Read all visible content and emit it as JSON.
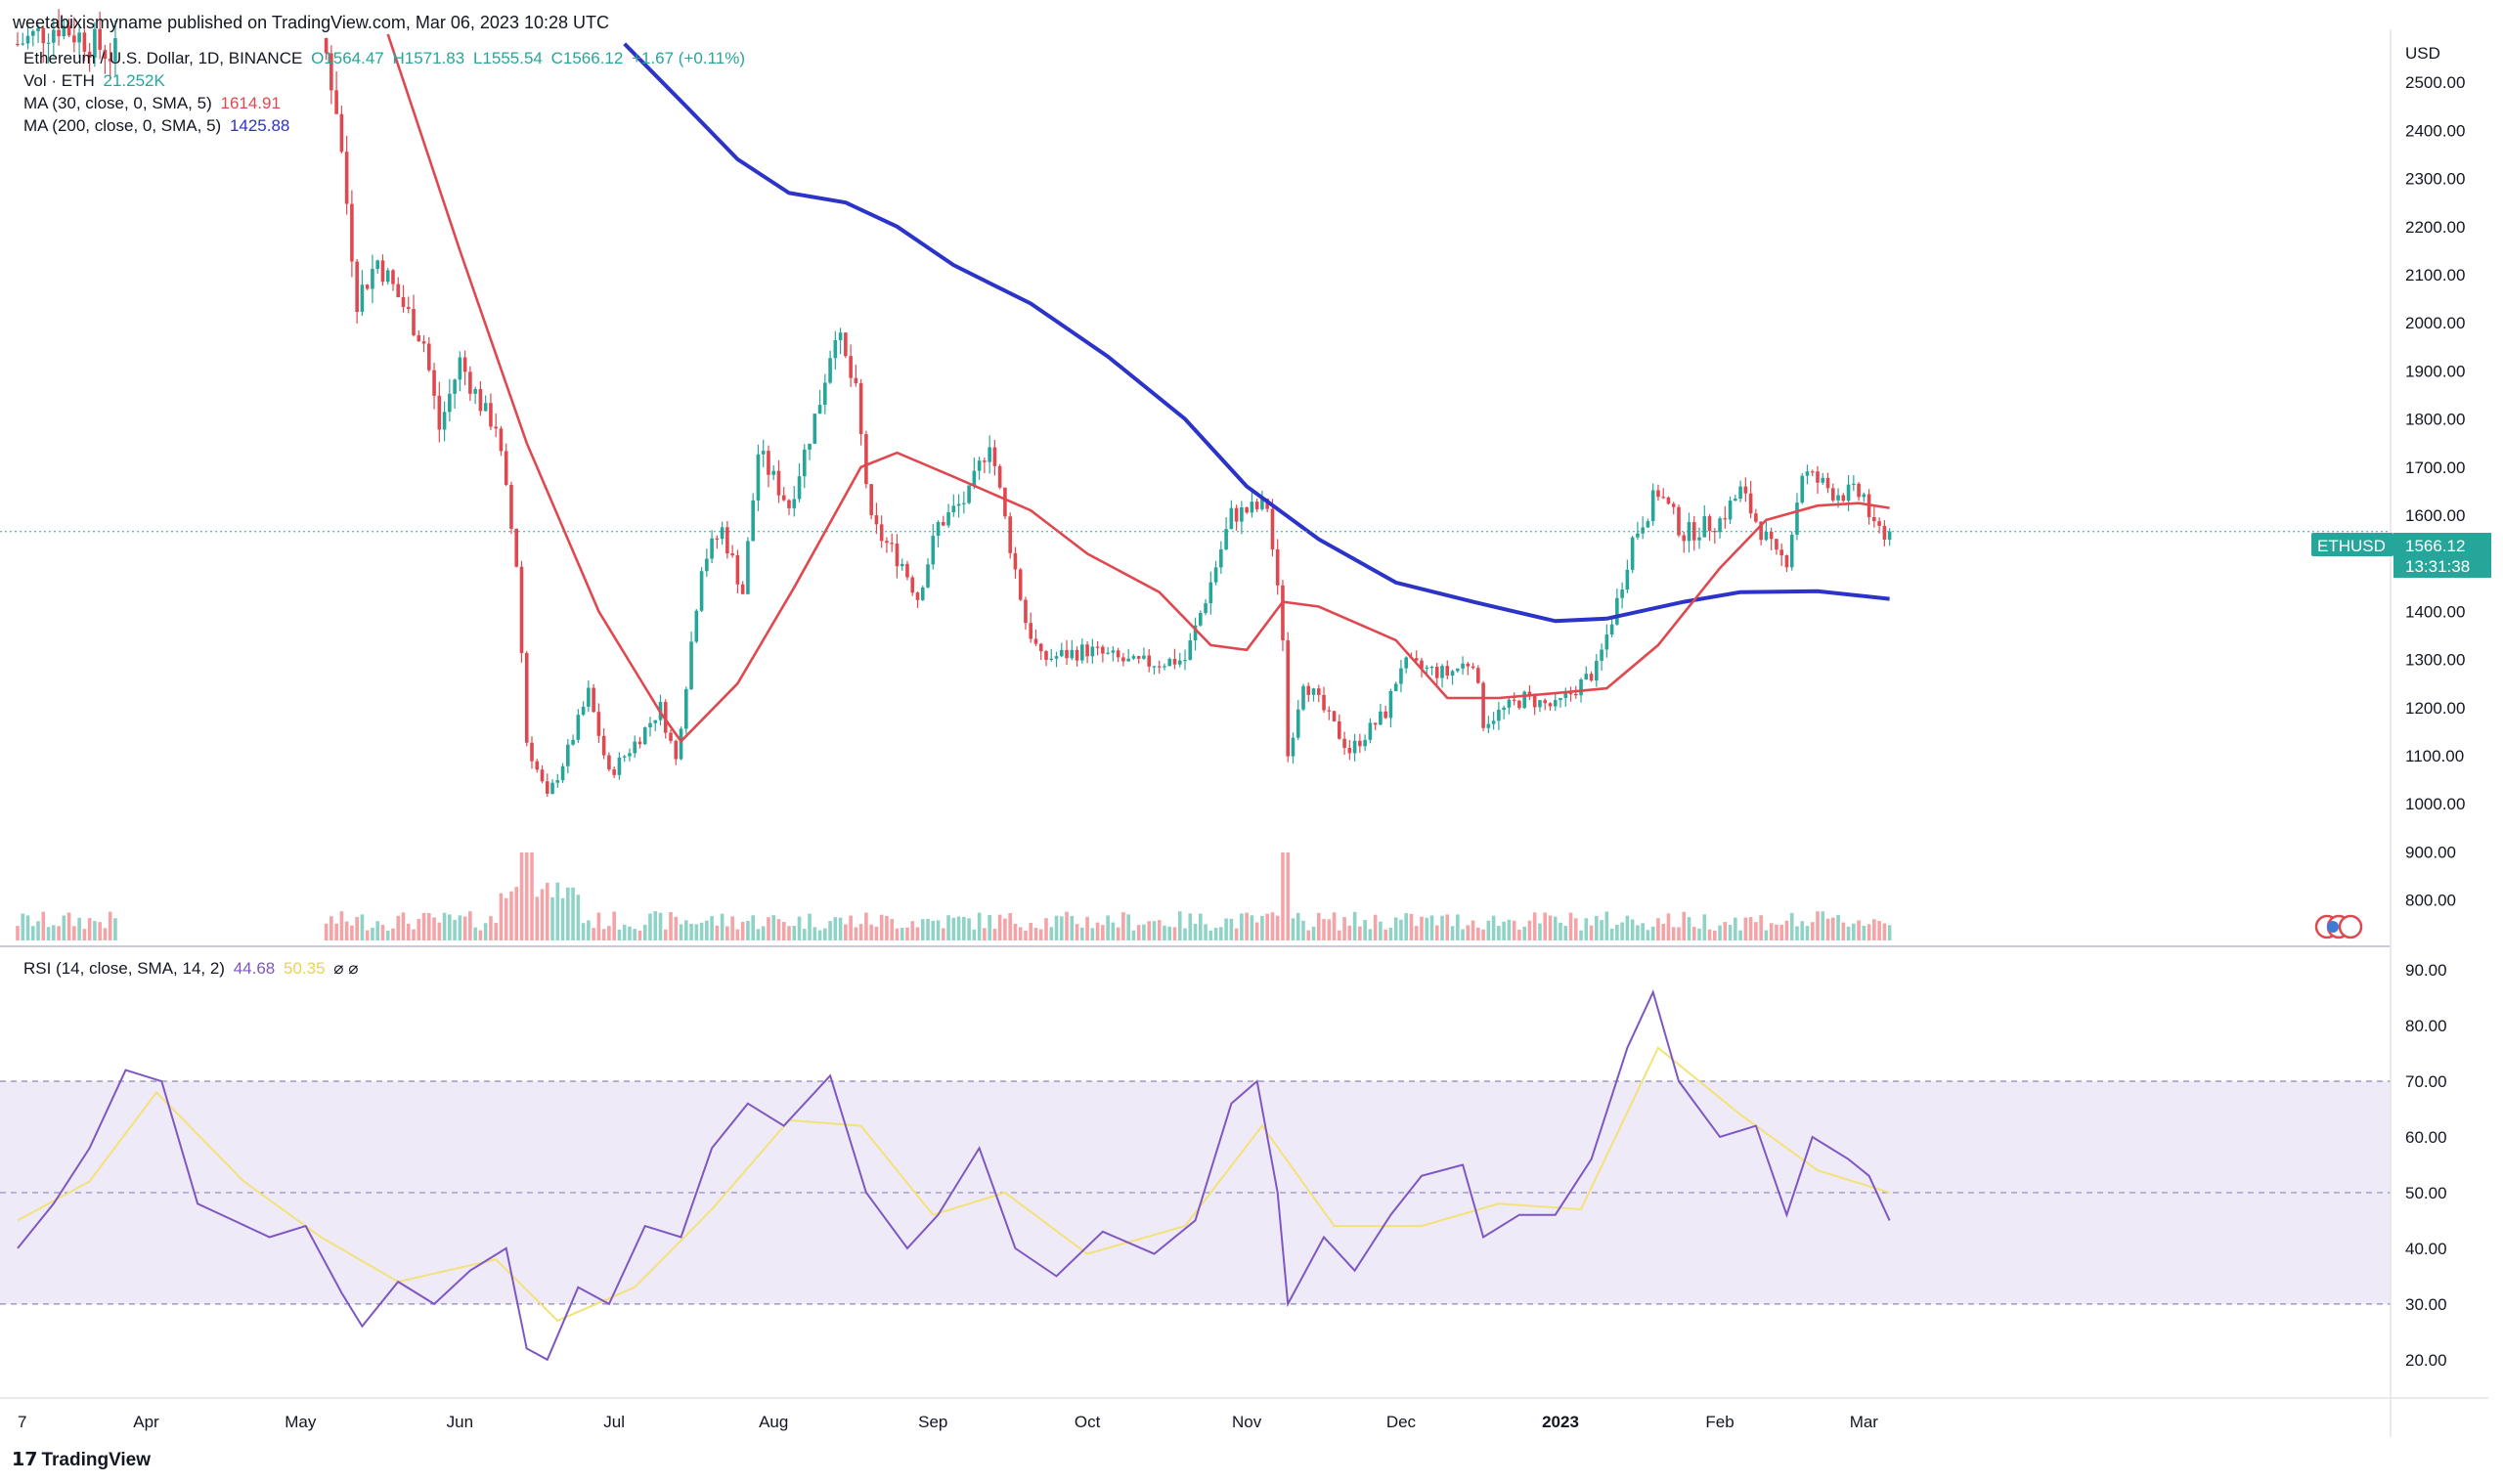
{
  "header": {
    "published": "weetabixismyname published on TradingView.com, Mar 06, 2023 10:28 UTC",
    "symbol": "Ethereum / U.S. Dollar, 1D, BINANCE",
    "ohlc": {
      "o": "O1564.47",
      "h": "H1571.83",
      "l": "L1555.54",
      "c": "C1566.12",
      "chg": "+1.67 (+0.11%)"
    },
    "vol_label": "Vol · ETH",
    "vol_value": "21.252K",
    "ma30_label": "MA (30, close, 0, SMA, 5)",
    "ma30_value": "1614.91",
    "ma200_label": "MA (200, close, 0, SMA, 5)",
    "ma200_value": "1425.88",
    "rsi_label": "RSI (14, close, SMA, 14, 2)",
    "rsi_value": "44.68",
    "rsi_ma_value": "50.35",
    "rsi_icons": "⌀ ⌀"
  },
  "footer": {
    "brand": "TradingView"
  },
  "colors": {
    "up": "#26a69a",
    "down": "#e0484f",
    "vol_up": "#8fd3c7",
    "vol_down": "#f4a3a6",
    "ma30": "#e0484f",
    "ma200": "#2c33c9",
    "rsi": "#7e57c2",
    "rsi_ma": "#f2e27a",
    "rsi_band": "#efeaf8"
  },
  "chart_data": [
    {
      "type": "candlestick",
      "name": "ETHUSD",
      "currency_label": "USD",
      "last_price_label": "1566.12",
      "countdown": "13:31:38",
      "ylim": [
        720,
        2600
      ],
      "y_ticks": [
        800,
        900,
        1000,
        1100,
        1200,
        1300,
        1400,
        1500,
        1600,
        1700,
        1800,
        1900,
        2000,
        2100,
        2200,
        2300,
        2400,
        2500
      ],
      "x_ticks": [
        "7",
        "Apr",
        "May",
        "Jun",
        "Jul",
        "Aug",
        "Sep",
        "Oct",
        "Nov",
        "Dec",
        "2023",
        "Feb",
        "Mar"
      ],
      "last_price": 1566.12,
      "price_path": [
        [
          "2022-03-07",
          2580
        ],
        [
          "2022-03-15",
          2620
        ],
        [
          "2022-03-25",
          2560
        ],
        [
          "2022-05-05",
          2610
        ],
        [
          "2022-05-08",
          2450
        ],
        [
          "2022-05-12",
          2050
        ],
        [
          "2022-05-16",
          2130
        ],
        [
          "2022-05-25",
          1960
        ],
        [
          "2022-05-28",
          1780
        ],
        [
          "2022-06-01",
          1920
        ],
        [
          "2022-06-06",
          1810
        ],
        [
          "2022-06-08",
          1790
        ],
        [
          "2022-06-12",
          1500
        ],
        [
          "2022-06-14",
          1130
        ],
        [
          "2022-06-18",
          1010
        ],
        [
          "2022-06-22",
          1110
        ],
        [
          "2022-06-26",
          1230
        ],
        [
          "2022-06-30",
          1060
        ],
        [
          "2022-07-06",
          1140
        ],
        [
          "2022-07-10",
          1200
        ],
        [
          "2022-07-13",
          1090
        ],
        [
          "2022-07-18",
          1500
        ],
        [
          "2022-07-22",
          1570
        ],
        [
          "2022-07-26",
          1440
        ],
        [
          "2022-07-29",
          1730
        ],
        [
          "2022-08-04",
          1620
        ],
        [
          "2022-08-10",
          1840
        ],
        [
          "2022-08-13",
          1990
        ],
        [
          "2022-08-17",
          1850
        ],
        [
          "2022-08-20",
          1580
        ],
        [
          "2022-08-26",
          1500
        ],
        [
          "2022-08-29",
          1430
        ],
        [
          "2022-09-02",
          1580
        ],
        [
          "2022-09-08",
          1640
        ],
        [
          "2022-09-12",
          1760
        ],
        [
          "2022-09-15",
          1590
        ],
        [
          "2022-09-19",
          1380
        ],
        [
          "2022-09-22",
          1300
        ],
        [
          "2022-10-01",
          1320
        ],
        [
          "2022-10-10",
          1290
        ],
        [
          "2022-10-20",
          1300
        ],
        [
          "2022-10-25",
          1460
        ],
        [
          "2022-10-29",
          1600
        ],
        [
          "2022-11-05",
          1620
        ],
        [
          "2022-11-08",
          1350
        ],
        [
          "2022-11-09",
          1100
        ],
        [
          "2022-11-12",
          1260
        ],
        [
          "2022-11-21",
          1110
        ],
        [
          "2022-11-28",
          1190
        ],
        [
          "2022-12-01",
          1290
        ],
        [
          "2022-12-10",
          1270
        ],
        [
          "2022-12-15",
          1300
        ],
        [
          "2022-12-17",
          1170
        ],
        [
          "2022-12-25",
          1220
        ],
        [
          "2022-12-31",
          1200
        ],
        [
          "2023-01-08",
          1280
        ],
        [
          "2023-01-12",
          1420
        ],
        [
          "2023-01-15",
          1550
        ],
        [
          "2023-01-20",
          1650
        ],
        [
          "2023-01-25",
          1560
        ],
        [
          "2023-02-01",
          1590
        ],
        [
          "2023-02-05",
          1650
        ],
        [
          "2023-02-12",
          1510
        ],
        [
          "2023-02-14",
          1510
        ],
        [
          "2023-02-17",
          1690
        ],
        [
          "2023-02-23",
          1650
        ],
        [
          "2023-03-01",
          1640
        ],
        [
          "2023-03-03",
          1566
        ]
      ],
      "ma30_path": [
        [
          "2022-05-18",
          2600
        ],
        [
          "2022-06-01",
          2150
        ],
        [
          "2022-06-14",
          1750
        ],
        [
          "2022-06-28",
          1400
        ],
        [
          "2022-07-10",
          1190
        ],
        [
          "2022-07-14",
          1130
        ],
        [
          "2022-07-25",
          1250
        ],
        [
          "2022-08-05",
          1450
        ],
        [
          "2022-08-18",
          1700
        ],
        [
          "2022-08-25",
          1730
        ],
        [
          "2022-09-05",
          1680
        ],
        [
          "2022-09-20",
          1610
        ],
        [
          "2022-10-01",
          1520
        ],
        [
          "2022-10-15",
          1440
        ],
        [
          "2022-10-25",
          1330
        ],
        [
          "2022-11-01",
          1320
        ],
        [
          "2022-11-08",
          1420
        ],
        [
          "2022-11-15",
          1410
        ],
        [
          "2022-11-30",
          1340
        ],
        [
          "2022-12-10",
          1220
        ],
        [
          "2022-12-20",
          1220
        ],
        [
          "2022-12-31",
          1230
        ],
        [
          "2023-01-10",
          1240
        ],
        [
          "2023-01-20",
          1330
        ],
        [
          "2023-02-01",
          1490
        ],
        [
          "2023-02-10",
          1590
        ],
        [
          "2023-02-20",
          1620
        ],
        [
          "2023-02-28",
          1625
        ],
        [
          "2023-03-06",
          1615
        ]
      ],
      "ma200_path": [
        [
          "2022-07-03",
          2580
        ],
        [
          "2022-07-15",
          2450
        ],
        [
          "2022-07-25",
          2340
        ],
        [
          "2022-08-04",
          2270
        ],
        [
          "2022-08-15",
          2250
        ],
        [
          "2022-08-25",
          2200
        ],
        [
          "2022-09-05",
          2120
        ],
        [
          "2022-09-20",
          2040
        ],
        [
          "2022-10-05",
          1930
        ],
        [
          "2022-10-20",
          1800
        ],
        [
          "2022-11-01",
          1660
        ],
        [
          "2022-11-15",
          1550
        ],
        [
          "2022-11-30",
          1460
        ],
        [
          "2022-12-15",
          1420
        ],
        [
          "2022-12-31",
          1380
        ],
        [
          "2023-01-10",
          1385
        ],
        [
          "2023-01-25",
          1420
        ],
        [
          "2023-02-05",
          1440
        ],
        [
          "2023-02-20",
          1442
        ],
        [
          "2023-03-06",
          1426
        ]
      ]
    },
    {
      "type": "bar",
      "name": "Volume",
      "ylim": [
        0,
        1
      ],
      "bars_per_day": 1
    },
    {
      "type": "line",
      "name": "RSI",
      "ylim": [
        14,
        93
      ],
      "y_ticks": [
        20,
        30,
        40,
        50,
        60,
        70,
        80,
        90
      ],
      "bands": [
        30,
        50,
        70
      ],
      "rsi_path": [
        [
          "2022-03-07",
          40
        ],
        [
          "2022-03-14",
          48
        ],
        [
          "2022-03-21",
          58
        ],
        [
          "2022-03-28",
          72
        ],
        [
          "2022-04-04",
          70
        ],
        [
          "2022-04-11",
          48
        ],
        [
          "2022-04-18",
          45
        ],
        [
          "2022-04-25",
          42
        ],
        [
          "2022-05-02",
          44
        ],
        [
          "2022-05-09",
          32
        ],
        [
          "2022-05-13",
          26
        ],
        [
          "2022-05-20",
          34
        ],
        [
          "2022-05-27",
          30
        ],
        [
          "2022-06-03",
          36
        ],
        [
          "2022-06-10",
          40
        ],
        [
          "2022-06-14",
          22
        ],
        [
          "2022-06-18",
          20
        ],
        [
          "2022-06-24",
          33
        ],
        [
          "2022-06-30",
          30
        ],
        [
          "2022-07-07",
          44
        ],
        [
          "2022-07-14",
          42
        ],
        [
          "2022-07-20",
          58
        ],
        [
          "2022-07-27",
          66
        ],
        [
          "2022-08-03",
          62
        ],
        [
          "2022-08-12",
          71
        ],
        [
          "2022-08-19",
          50
        ],
        [
          "2022-08-27",
          40
        ],
        [
          "2022-09-02",
          46
        ],
        [
          "2022-09-10",
          58
        ],
        [
          "2022-09-17",
          40
        ],
        [
          "2022-09-25",
          35
        ],
        [
          "2022-10-04",
          43
        ],
        [
          "2022-10-14",
          39
        ],
        [
          "2022-10-22",
          45
        ],
        [
          "2022-10-29",
          66
        ],
        [
          "2022-11-03",
          70
        ],
        [
          "2022-11-07",
          50
        ],
        [
          "2022-11-09",
          30
        ],
        [
          "2022-11-16",
          42
        ],
        [
          "2022-11-22",
          36
        ],
        [
          "2022-11-29",
          46
        ],
        [
          "2022-12-05",
          53
        ],
        [
          "2022-12-13",
          55
        ],
        [
          "2022-12-17",
          42
        ],
        [
          "2022-12-24",
          46
        ],
        [
          "2022-12-31",
          46
        ],
        [
          "2023-01-07",
          56
        ],
        [
          "2023-01-14",
          76
        ],
        [
          "2023-01-19",
          86
        ],
        [
          "2023-01-24",
          70
        ],
        [
          "2023-02-01",
          60
        ],
        [
          "2023-02-08",
          62
        ],
        [
          "2023-02-14",
          46
        ],
        [
          "2023-02-19",
          60
        ],
        [
          "2023-02-26",
          56
        ],
        [
          "2023-03-02",
          53
        ],
        [
          "2023-03-06",
          45
        ]
      ],
      "rsi_ma_path": [
        [
          "2022-03-07",
          45
        ],
        [
          "2022-03-21",
          52
        ],
        [
          "2022-04-03",
          68
        ],
        [
          "2022-04-20",
          52
        ],
        [
          "2022-05-05",
          42
        ],
        [
          "2022-05-20",
          34
        ],
        [
          "2022-06-08",
          38
        ],
        [
          "2022-06-20",
          27
        ],
        [
          "2022-07-05",
          33
        ],
        [
          "2022-07-20",
          47
        ],
        [
          "2022-08-04",
          63
        ],
        [
          "2022-08-18",
          62
        ],
        [
          "2022-09-01",
          46
        ],
        [
          "2022-09-15",
          50
        ],
        [
          "2022-10-01",
          39
        ],
        [
          "2022-10-20",
          44
        ],
        [
          "2022-11-04",
          62
        ],
        [
          "2022-11-18",
          44
        ],
        [
          "2022-12-05",
          44
        ],
        [
          "2022-12-20",
          48
        ],
        [
          "2023-01-05",
          47
        ],
        [
          "2023-01-20",
          76
        ],
        [
          "2023-02-05",
          64
        ],
        [
          "2023-02-20",
          54
        ],
        [
          "2023-03-06",
          50
        ]
      ]
    }
  ]
}
